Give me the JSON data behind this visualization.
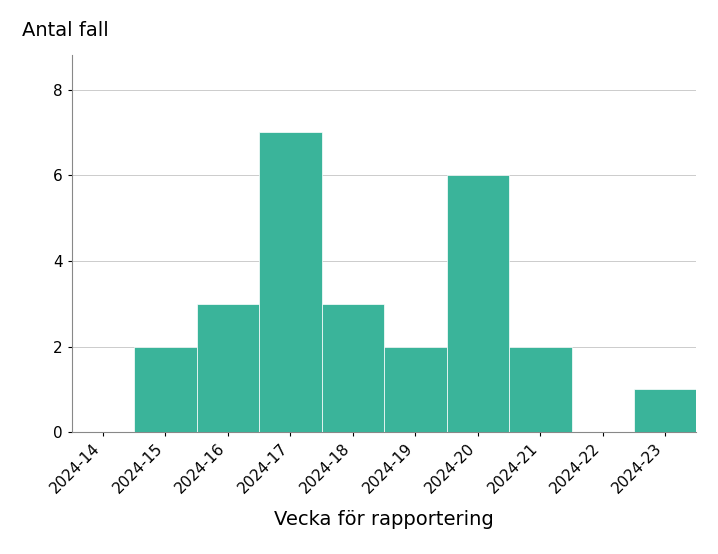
{
  "categories": [
    "2024-14",
    "2024-15",
    "2024-16",
    "2024-17",
    "2024-18",
    "2024-19",
    "2024-20",
    "2024-21",
    "2024-22",
    "2024-23"
  ],
  "values": [
    0,
    2,
    3,
    7,
    3,
    2,
    6,
    2,
    0,
    1
  ],
  "bar_color": "#3ab49a",
  "bar_edge_color": "white",
  "bar_edge_width": 0.5,
  "ylabel": "Antal fall",
  "xlabel": "Vecka för rapportering",
  "ylim": [
    0,
    8.8
  ],
  "yticks": [
    0,
    2,
    4,
    6,
    8
  ],
  "background_color": "#ffffff",
  "grid_color": "#cccccc",
  "grid_linewidth": 0.7,
  "ylabel_fontsize": 14,
  "xlabel_fontsize": 14,
  "tick_fontsize": 11,
  "figsize": [
    7.18,
    5.54
  ],
  "dpi": 100
}
